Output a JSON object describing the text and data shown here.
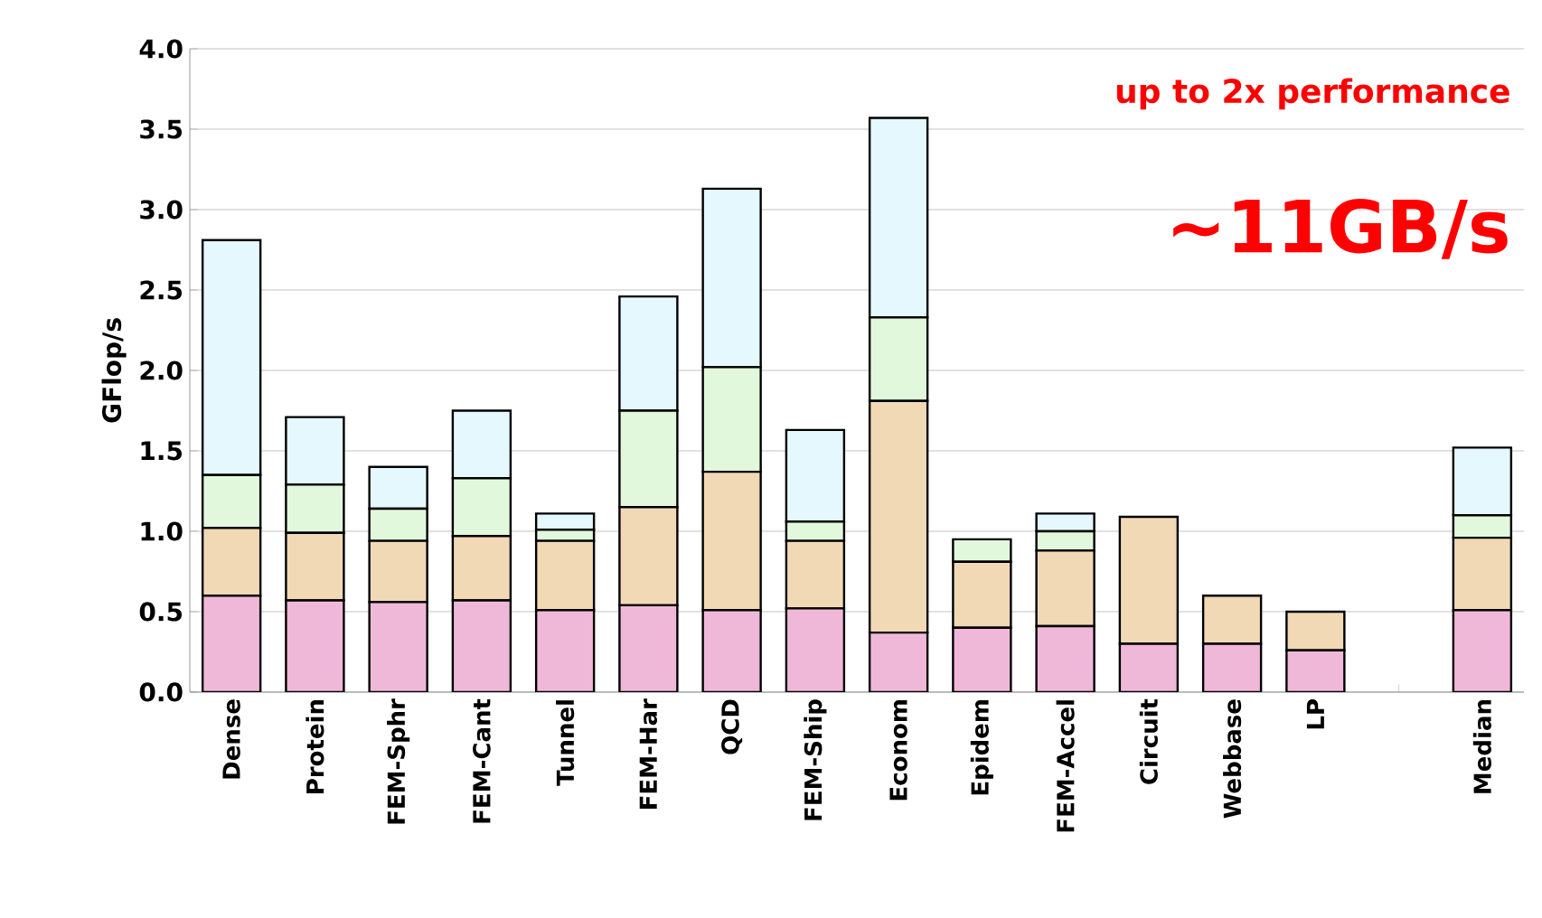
{
  "chart_data": {
    "type": "bar",
    "stacked": true,
    "ylabel": "GFlop/s",
    "categories": [
      "Dense",
      "Protein",
      "FEM-Sphr",
      "FEM-Cant",
      "Tunnel",
      "FEM-Har",
      "QCD",
      "FEM-Ship",
      "Econom",
      "Epidem",
      "FEM-Accel",
      "Circuit",
      "Webbase",
      "LP",
      null,
      "Median"
    ],
    "series": [
      {
        "color": "#f0b8d8",
        "values": [
          0.6,
          0.57,
          0.56,
          0.57,
          0.51,
          0.54,
          0.51,
          0.52,
          0.37,
          0.4,
          0.41,
          0.3,
          0.3,
          0.26,
          null,
          0.51
        ]
      },
      {
        "color": "#f2d9b5",
        "values": [
          0.42,
          0.42,
          0.38,
          0.4,
          0.43,
          0.61,
          0.86,
          0.42,
          1.44,
          0.41,
          0.47,
          0.79,
          0.3,
          0.24,
          null,
          0.45
        ]
      },
      {
        "color": "#e2f8dc",
        "values": [
          0.33,
          0.3,
          0.2,
          0.36,
          0.07,
          0.6,
          0.65,
          0.12,
          0.52,
          0.14,
          0.12,
          0,
          null,
          0,
          null,
          0.14
        ]
      },
      {
        "color": "#e4f8fe",
        "values": [
          1.46,
          0.42,
          0.26,
          0.42,
          0.1,
          0.71,
          1.11,
          0.57,
          1.24,
          0,
          0.11,
          0,
          0,
          0,
          null,
          0.42
        ]
      }
    ],
    "ylim": [
      0,
      4
    ],
    "yticks": [
      {
        "value": 0,
        "label": "0.0"
      },
      {
        "value": 0.5,
        "label": "0.5"
      },
      {
        "value": 1,
        "label": "1.0"
      },
      {
        "value": 1.5,
        "label": "1.5"
      },
      {
        "value": 2,
        "label": "2.0"
      },
      {
        "value": 2.5,
        "label": "2.5"
      },
      {
        "value": 3,
        "label": "3.0"
      },
      {
        "value": 3.5,
        "label": "3.5"
      },
      {
        "value": 4,
        "label": "4.0"
      }
    ],
    "grid": "y",
    "annotations": [
      "up to 2x performance",
      "~11GB/s"
    ]
  }
}
